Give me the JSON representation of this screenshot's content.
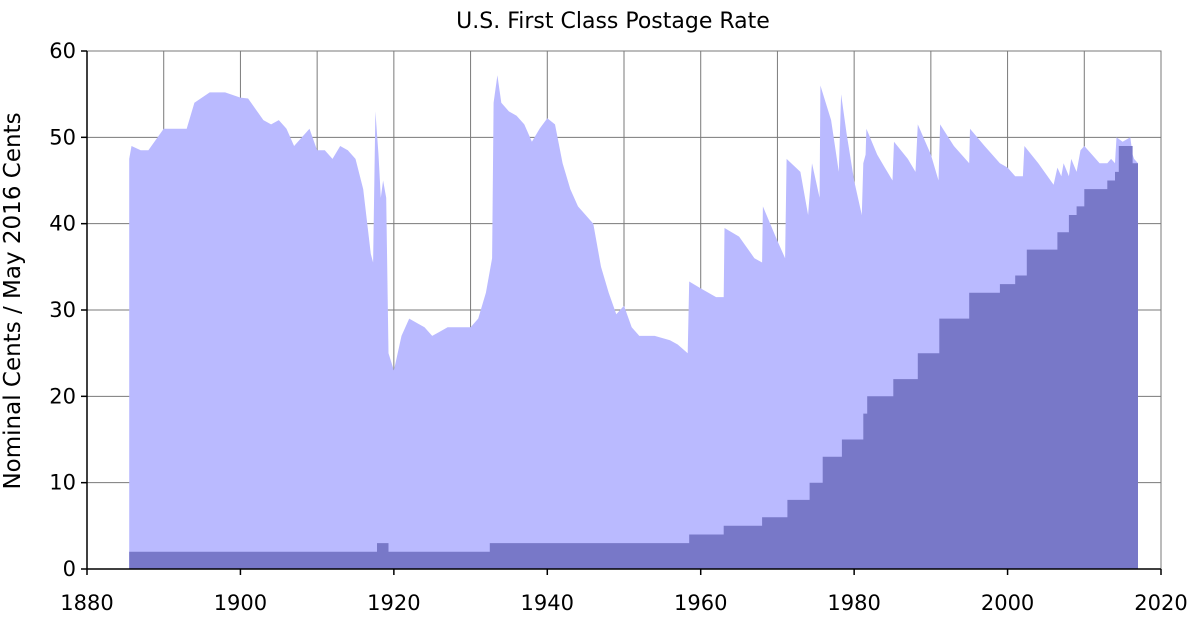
{
  "chart_data": {
    "type": "area",
    "title": "U.S. First Class Postage Rate",
    "xlabel": "",
    "ylabel": "Nominal Cents  /  May 2016 Cents",
    "xlim": [
      1880,
      2020
    ],
    "ylim": [
      0,
      60
    ],
    "x_ticks": [
      "1880",
      "1900",
      "1920",
      "1940",
      "1960",
      "1980",
      "2000",
      "2020"
    ],
    "x_tick_values": [
      1880,
      1900,
      1920,
      1940,
      1960,
      1980,
      2000,
      2020
    ],
    "y_ticks": [
      "0",
      "10",
      "20",
      "30",
      "40",
      "50",
      "60"
    ],
    "y_tick_values": [
      0,
      10,
      20,
      30,
      40,
      50,
      60
    ],
    "grid": true,
    "x_minor_step": 10,
    "colors": {
      "real": "#babaff",
      "nominal": "#7878c8",
      "grid": "#7a7a7a"
    },
    "series": [
      {
        "key": "real",
        "points": [
          [
            1885.5,
            47.5
          ],
          [
            1885.8,
            49
          ],
          [
            1887,
            48.5
          ],
          [
            1888,
            48.5
          ],
          [
            1890,
            51
          ],
          [
            1893,
            51
          ],
          [
            1894,
            54
          ],
          [
            1896,
            55.2
          ],
          [
            1898,
            55.2
          ],
          [
            1900,
            54.6
          ],
          [
            1901,
            54.5
          ],
          [
            1903,
            52
          ],
          [
            1904,
            51.5
          ],
          [
            1905,
            52
          ],
          [
            1906,
            51
          ],
          [
            1907,
            49
          ],
          [
            1909,
            51
          ],
          [
            1910,
            48.5
          ],
          [
            1911,
            48.5
          ],
          [
            1912,
            47.5
          ],
          [
            1913,
            49
          ],
          [
            1914,
            48.5
          ],
          [
            1915,
            47.5
          ],
          [
            1916,
            44
          ],
          [
            1917,
            36.5
          ],
          [
            1917.3,
            35.5
          ],
          [
            1917.6,
            53
          ],
          [
            1918,
            48
          ],
          [
            1918.3,
            43
          ],
          [
            1918.6,
            45
          ],
          [
            1919,
            43
          ],
          [
            1919.3,
            25
          ],
          [
            1920,
            23
          ],
          [
            1921,
            27
          ],
          [
            1922,
            29
          ],
          [
            1923,
            28.5
          ],
          [
            1924,
            28
          ],
          [
            1925,
            27
          ],
          [
            1926,
            27.5
          ],
          [
            1927,
            28
          ],
          [
            1928,
            28
          ],
          [
            1930,
            28
          ],
          [
            1931,
            29
          ],
          [
            1932,
            32
          ],
          [
            1932.8,
            36
          ],
          [
            1933,
            54
          ],
          [
            1933.5,
            57.2
          ],
          [
            1934,
            54
          ],
          [
            1935,
            53
          ],
          [
            1936,
            52.5
          ],
          [
            1937,
            51.5
          ],
          [
            1938,
            49.5
          ],
          [
            1939,
            51
          ],
          [
            1940,
            52.2
          ],
          [
            1941,
            51.5
          ],
          [
            1942,
            47
          ],
          [
            1943,
            44
          ],
          [
            1944,
            42
          ],
          [
            1945,
            41
          ],
          [
            1946,
            40
          ],
          [
            1947,
            35
          ],
          [
            1948,
            32
          ],
          [
            1949,
            29.5
          ],
          [
            1950,
            30.5
          ],
          [
            1951,
            28
          ],
          [
            1952,
            27
          ],
          [
            1954,
            27
          ],
          [
            1956,
            26.5
          ],
          [
            1957,
            26
          ],
          [
            1958.3,
            25
          ],
          [
            1958.5,
            33.3
          ],
          [
            1960,
            32.5
          ],
          [
            1962,
            31.5
          ],
          [
            1963,
            31.5
          ],
          [
            1963.1,
            39.5
          ],
          [
            1965,
            38.5
          ],
          [
            1967,
            36
          ],
          [
            1968,
            35.5
          ],
          [
            1968.1,
            42
          ],
          [
            1970,
            38
          ],
          [
            1971,
            36
          ],
          [
            1971.2,
            47.5
          ],
          [
            1973,
            46
          ],
          [
            1974,
            41
          ],
          [
            1974.5,
            47
          ],
          [
            1975.5,
            43
          ],
          [
            1975.6,
            56
          ],
          [
            1977,
            52
          ],
          [
            1978,
            46
          ],
          [
            1978.3,
            55
          ],
          [
            1979,
            50.5
          ],
          [
            1980,
            45
          ],
          [
            1981,
            41
          ],
          [
            1981.2,
            47
          ],
          [
            1981.5,
            48
          ],
          [
            1981.6,
            51
          ],
          [
            1983,
            48
          ],
          [
            1984,
            46.5
          ],
          [
            1985,
            45
          ],
          [
            1985.2,
            49.5
          ],
          [
            1987,
            47.5
          ],
          [
            1988,
            46
          ],
          [
            1988.3,
            51.5
          ],
          [
            1990,
            48
          ],
          [
            1991,
            45
          ],
          [
            1991.2,
            51.5
          ],
          [
            1993,
            49
          ],
          [
            1995,
            47
          ],
          [
            1995.1,
            51
          ],
          [
            1997,
            49
          ],
          [
            1999,
            47
          ],
          [
            2000,
            46.5
          ],
          [
            2001,
            45.5
          ],
          [
            2002,
            45.5
          ],
          [
            2002.2,
            49
          ],
          [
            2004,
            47
          ],
          [
            2006,
            44.5
          ],
          [
            2006.5,
            46.5
          ],
          [
            2007,
            45.5
          ],
          [
            2007.3,
            47
          ],
          [
            2008,
            45.5
          ],
          [
            2008.3,
            47.5
          ],
          [
            2009,
            46
          ],
          [
            2009.5,
            48.5
          ],
          [
            2010,
            49
          ],
          [
            2011,
            48
          ],
          [
            2012,
            47
          ],
          [
            2013,
            47
          ],
          [
            2013.5,
            47.5
          ],
          [
            2014,
            47
          ],
          [
            2014.2,
            50
          ],
          [
            2015,
            49.5
          ],
          [
            2016,
            50
          ],
          [
            2016.3,
            48
          ],
          [
            2016.5,
            47.5
          ],
          [
            2017,
            47
          ]
        ]
      },
      {
        "key": "nominal",
        "points": [
          [
            1885.5,
            2
          ],
          [
            1917.8,
            2
          ],
          [
            1917.8,
            3
          ],
          [
            1919.3,
            3
          ],
          [
            1919.3,
            2
          ],
          [
            1932.5,
            2
          ],
          [
            1932.5,
            3
          ],
          [
            1958.5,
            3
          ],
          [
            1958.5,
            4
          ],
          [
            1963,
            4
          ],
          [
            1963,
            5
          ],
          [
            1968,
            5
          ],
          [
            1968,
            6
          ],
          [
            1971.3,
            6
          ],
          [
            1971.3,
            8
          ],
          [
            1974.2,
            8
          ],
          [
            1974.2,
            10
          ],
          [
            1975.9,
            10
          ],
          [
            1975.9,
            13
          ],
          [
            1978.4,
            13
          ],
          [
            1978.4,
            15
          ],
          [
            1981.2,
            15
          ],
          [
            1981.2,
            18
          ],
          [
            1981.7,
            18
          ],
          [
            1981.7,
            20
          ],
          [
            1985.1,
            20
          ],
          [
            1985.1,
            22
          ],
          [
            1988.3,
            22
          ],
          [
            1988.3,
            25
          ],
          [
            1991.1,
            25
          ],
          [
            1991.1,
            29
          ],
          [
            1995,
            29
          ],
          [
            1995,
            32
          ],
          [
            1999,
            32
          ],
          [
            1999,
            33
          ],
          [
            2001,
            33
          ],
          [
            2001,
            34
          ],
          [
            2002.5,
            34
          ],
          [
            2002.5,
            37
          ],
          [
            2006.5,
            37
          ],
          [
            2006.5,
            39
          ],
          [
            2008,
            39
          ],
          [
            2008,
            41
          ],
          [
            2009,
            41
          ],
          [
            2009,
            42
          ],
          [
            2010,
            42
          ],
          [
            2010,
            44
          ],
          [
            2013,
            44
          ],
          [
            2013,
            45
          ],
          [
            2014,
            45
          ],
          [
            2014,
            46
          ],
          [
            2014.5,
            46
          ],
          [
            2014.5,
            49
          ],
          [
            2016.3,
            49
          ],
          [
            2016.3,
            47
          ],
          [
            2017,
            47
          ]
        ]
      }
    ]
  }
}
